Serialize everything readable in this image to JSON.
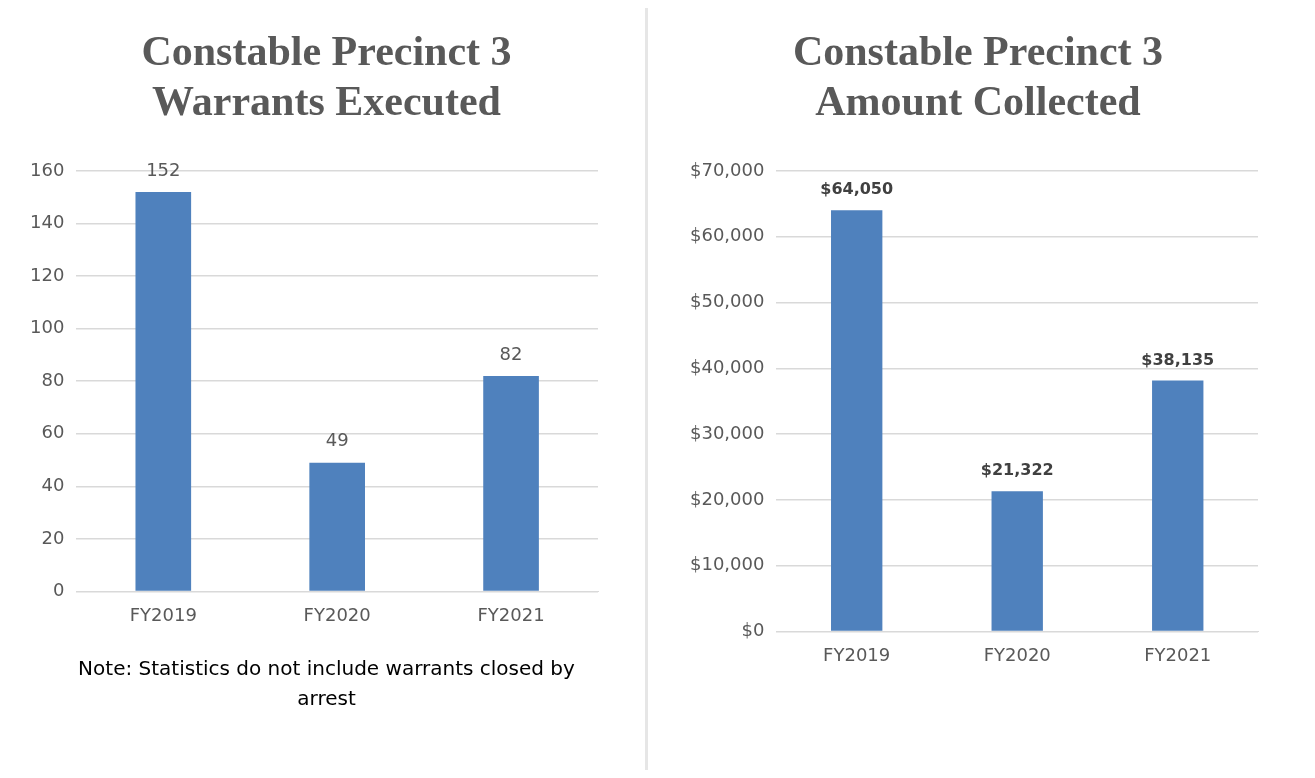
{
  "chart_data": [
    {
      "type": "bar",
      "title": "Constable Precinct 3 Warrants Executed",
      "categories": [
        "FY2019",
        "FY2020",
        "FY2021"
      ],
      "series": [
        {
          "color": "#4f81bd",
          "values": [
            152,
            49,
            82
          ]
        }
      ],
      "ylim": [
        0,
        160
      ],
      "yticks": [
        0,
        20,
        40,
        60,
        80,
        100,
        120,
        140,
        160
      ],
      "grid": "y",
      "legend": false,
      "data_labels": true,
      "annotations": [
        "Note: Statistics do not include warrants closed by arrest"
      ]
    },
    {
      "type": "bar",
      "title": "Constable Precinct 3 Amount Collected",
      "categories": [
        "FY2019",
        "FY2020",
        "FY2021"
      ],
      "series": [
        {
          "color": "#4f81bd",
          "values": [
            64050,
            21322,
            38135
          ],
          "value_labels": [
            "$64,050",
            "$21,322",
            "$38,135"
          ]
        }
      ],
      "ylim": [
        0,
        70000
      ],
      "yticks": [
        {
          "value": 0,
          "label": "$0"
        },
        {
          "value": 10000,
          "label": "$10,000"
        },
        {
          "value": 20000,
          "label": "$20,000"
        },
        {
          "value": 30000,
          "label": "$30,000"
        },
        {
          "value": 40000,
          "label": "$40,000"
        },
        {
          "value": 50000,
          "label": "$50,000"
        },
        {
          "value": 60000,
          "label": "$60,000"
        },
        {
          "value": 70000,
          "label": "$70,000"
        }
      ],
      "grid": "y",
      "legend": false
    }
  ]
}
